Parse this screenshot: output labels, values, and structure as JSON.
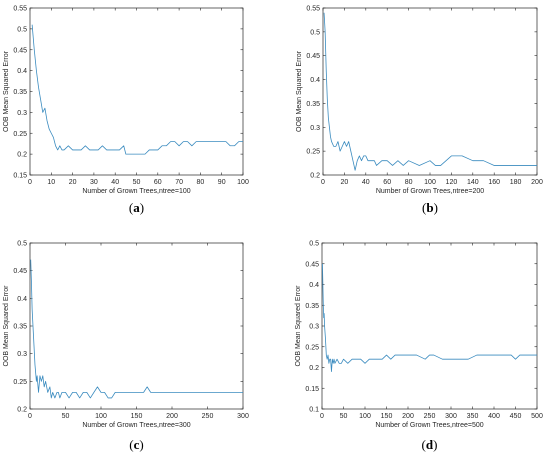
{
  "chart_data": [
    {
      "type": "line",
      "panel_label": "a",
      "xlabel": "Number of Grown Trees,ntree=100",
      "ylabel": "OOB Mean Squared Error",
      "xlim": [
        0,
        100
      ],
      "ylim": [
        0.15,
        0.55
      ],
      "xticks": [
        0,
        10,
        20,
        30,
        40,
        50,
        60,
        70,
        80,
        90,
        100
      ],
      "yticks": [
        0.15,
        0.2,
        0.25,
        0.3,
        0.35,
        0.4,
        0.45,
        0.5,
        0.55
      ],
      "ytick_labels": [
        "0.15",
        "0.2",
        "0.25",
        "0.3",
        "0.35",
        "0.4",
        "0.45",
        "0.5",
        "0.55"
      ],
      "series": [
        {
          "color": "#3a8bbf",
          "x": [
            1,
            2,
            3,
            4,
            5,
            6,
            7,
            8,
            9,
            10,
            11,
            12,
            13,
            14,
            15,
            16,
            18,
            20,
            22,
            24,
            26,
            28,
            30,
            32,
            34,
            36,
            38,
            40,
            42,
            44,
            45,
            48,
            50,
            52,
            54,
            56,
            58,
            60,
            62,
            64,
            66,
            68,
            70,
            72,
            74,
            76,
            78,
            80,
            82,
            84,
            86,
            88,
            90,
            92,
            94,
            96,
            98,
            100
          ],
          "y": [
            0.51,
            0.45,
            0.4,
            0.36,
            0.33,
            0.3,
            0.31,
            0.28,
            0.26,
            0.25,
            0.24,
            0.22,
            0.21,
            0.22,
            0.21,
            0.21,
            0.22,
            0.21,
            0.21,
            0.21,
            0.22,
            0.21,
            0.21,
            0.21,
            0.22,
            0.21,
            0.21,
            0.21,
            0.21,
            0.22,
            0.2,
            0.2,
            0.2,
            0.2,
            0.2,
            0.21,
            0.21,
            0.21,
            0.22,
            0.22,
            0.23,
            0.23,
            0.22,
            0.23,
            0.23,
            0.22,
            0.23,
            0.23,
            0.23,
            0.23,
            0.23,
            0.23,
            0.23,
            0.23,
            0.22,
            0.22,
            0.23,
            0.23
          ]
        }
      ]
    },
    {
      "type": "line",
      "panel_label": "b",
      "xlabel": "Number of Grown Trees,ntree=200",
      "ylabel": "OOB Mean Squared Error",
      "xlim": [
        0,
        200
      ],
      "ylim": [
        0.2,
        0.55
      ],
      "xticks": [
        0,
        20,
        40,
        60,
        80,
        100,
        120,
        140,
        160,
        180,
        200
      ],
      "yticks": [
        0.2,
        0.25,
        0.3,
        0.35,
        0.4,
        0.45,
        0.5,
        0.55
      ],
      "ytick_labels": [
        "0.2",
        "0.25",
        "0.3",
        "0.35",
        "0.4",
        "0.45",
        "0.5",
        "0.55"
      ],
      "series": [
        {
          "color": "#3a8bbf",
          "x": [
            1,
            2,
            3,
            4,
            5,
            6,
            7,
            8,
            10,
            12,
            14,
            16,
            18,
            20,
            22,
            24,
            26,
            28,
            30,
            32,
            34,
            36,
            38,
            40,
            42,
            44,
            46,
            48,
            50,
            55,
            60,
            65,
            70,
            75,
            80,
            90,
            100,
            105,
            110,
            115,
            120,
            130,
            140,
            150,
            160,
            170,
            175,
            180,
            185,
            190,
            195,
            200
          ],
          "y": [
            0.54,
            0.5,
            0.42,
            0.36,
            0.32,
            0.3,
            0.28,
            0.27,
            0.26,
            0.26,
            0.27,
            0.25,
            0.26,
            0.27,
            0.26,
            0.27,
            0.25,
            0.23,
            0.21,
            0.23,
            0.24,
            0.23,
            0.24,
            0.24,
            0.23,
            0.23,
            0.23,
            0.23,
            0.22,
            0.23,
            0.23,
            0.22,
            0.23,
            0.22,
            0.23,
            0.22,
            0.23,
            0.22,
            0.22,
            0.23,
            0.24,
            0.24,
            0.23,
            0.23,
            0.22,
            0.22,
            0.22,
            0.22,
            0.22,
            0.22,
            0.22,
            0.22
          ]
        }
      ]
    },
    {
      "type": "line",
      "panel_label": "c",
      "xlabel": "Number of Grown Trees,ntree=300",
      "ylabel": "OOB Mean Squared Error",
      "xlim": [
        0,
        300
      ],
      "ylim": [
        0.2,
        0.5
      ],
      "xticks": [
        0,
        50,
        100,
        150,
        200,
        250,
        300
      ],
      "yticks": [
        0.2,
        0.25,
        0.3,
        0.35,
        0.4,
        0.45,
        0.5
      ],
      "ytick_labels": [
        "0.2",
        "0.25",
        "0.3",
        "0.35",
        "0.4",
        "0.45",
        "0.5"
      ],
      "series": [
        {
          "color": "#3a8bbf",
          "x": [
            1,
            2,
            3,
            5,
            7,
            9,
            10,
            12,
            14,
            16,
            18,
            20,
            22,
            25,
            28,
            30,
            32,
            35,
            38,
            40,
            42,
            45,
            50,
            55,
            60,
            65,
            70,
            75,
            80,
            85,
            90,
            95,
            100,
            105,
            110,
            115,
            120,
            130,
            140,
            150,
            160,
            165,
            170,
            180,
            190,
            200,
            210,
            220,
            230,
            240,
            250,
            260,
            270,
            280,
            290,
            300
          ],
          "y": [
            0.47,
            0.43,
            0.38,
            0.33,
            0.28,
            0.25,
            0.26,
            0.23,
            0.26,
            0.25,
            0.26,
            0.24,
            0.25,
            0.23,
            0.24,
            0.22,
            0.23,
            0.22,
            0.23,
            0.23,
            0.22,
            0.23,
            0.23,
            0.22,
            0.23,
            0.23,
            0.22,
            0.23,
            0.23,
            0.22,
            0.23,
            0.24,
            0.23,
            0.23,
            0.22,
            0.22,
            0.23,
            0.23,
            0.23,
            0.23,
            0.23,
            0.24,
            0.23,
            0.23,
            0.23,
            0.23,
            0.23,
            0.23,
            0.23,
            0.23,
            0.23,
            0.23,
            0.23,
            0.23,
            0.23,
            0.23
          ]
        }
      ]
    },
    {
      "type": "line",
      "panel_label": "d",
      "xlabel": "Number of Grown Trees,ntree=500",
      "ylabel": "OOB Mean Squared Error",
      "xlim": [
        0,
        500
      ],
      "ylim": [
        0.1,
        0.5
      ],
      "xticks": [
        0,
        50,
        100,
        150,
        200,
        250,
        300,
        350,
        400,
        450,
        500
      ],
      "yticks": [
        0.1,
        0.15,
        0.2,
        0.25,
        0.3,
        0.35,
        0.4,
        0.45,
        0.5
      ],
      "ytick_labels": [
        "0.1",
        "0.15",
        "0.2",
        "0.25",
        "0.3",
        "0.35",
        "0.4",
        "0.45",
        "0.5"
      ],
      "series": [
        {
          "color": "#3a8bbf",
          "x": [
            1,
            2,
            3,
            4,
            5,
            6,
            8,
            10,
            12,
            14,
            16,
            18,
            20,
            22,
            24,
            26,
            28,
            30,
            35,
            40,
            45,
            50,
            60,
            70,
            80,
            90,
            100,
            110,
            120,
            130,
            140,
            150,
            160,
            170,
            180,
            190,
            200,
            220,
            240,
            250,
            260,
            280,
            300,
            320,
            340,
            360,
            380,
            400,
            420,
            440,
            450,
            460,
            480,
            500
          ],
          "y": [
            0.45,
            0.4,
            0.35,
            0.32,
            0.33,
            0.3,
            0.27,
            0.23,
            0.22,
            0.23,
            0.21,
            0.22,
            0.22,
            0.19,
            0.22,
            0.21,
            0.22,
            0.21,
            0.22,
            0.21,
            0.21,
            0.22,
            0.21,
            0.22,
            0.22,
            0.22,
            0.21,
            0.22,
            0.22,
            0.22,
            0.22,
            0.23,
            0.22,
            0.23,
            0.23,
            0.23,
            0.23,
            0.23,
            0.22,
            0.23,
            0.23,
            0.22,
            0.22,
            0.22,
            0.22,
            0.23,
            0.23,
            0.23,
            0.23,
            0.23,
            0.22,
            0.23,
            0.23,
            0.23
          ]
        }
      ]
    }
  ]
}
